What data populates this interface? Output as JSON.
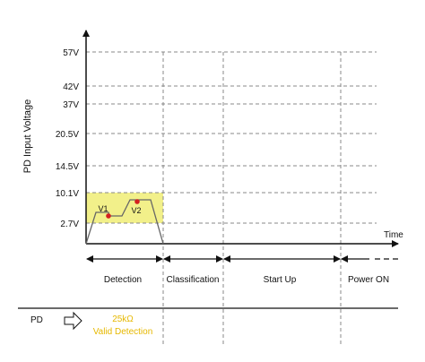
{
  "y_axis": {
    "title": "PD Input Voltage",
    "ticks": [
      {
        "label": "57V",
        "value": 57
      },
      {
        "label": "42V",
        "value": 42
      },
      {
        "label": "37V",
        "value": 37
      },
      {
        "label": "20.5V",
        "value": 20.5
      },
      {
        "label": "14.5V",
        "value": 14.5
      },
      {
        "label": "10.1V",
        "value": 10.1
      },
      {
        "label": "2.7V",
        "value": 2.7
      }
    ]
  },
  "x_axis": {
    "label": "Time"
  },
  "detection_window": {
    "low": "2.7V",
    "high": "10.1V",
    "color": "#f2f08a"
  },
  "points": [
    {
      "label": "V1",
      "color": "#d42020"
    },
    {
      "label": "V2",
      "color": "#d42020"
    }
  ],
  "phases": [
    {
      "label": "Detection"
    },
    {
      "label": "Classification"
    },
    {
      "label": "Start Up"
    },
    {
      "label": "Power ON"
    }
  ],
  "legend": {
    "device": "PD",
    "value_line1": "25kΩ",
    "value_line2": "Valid Detection",
    "value_color": "#e6b800"
  }
}
